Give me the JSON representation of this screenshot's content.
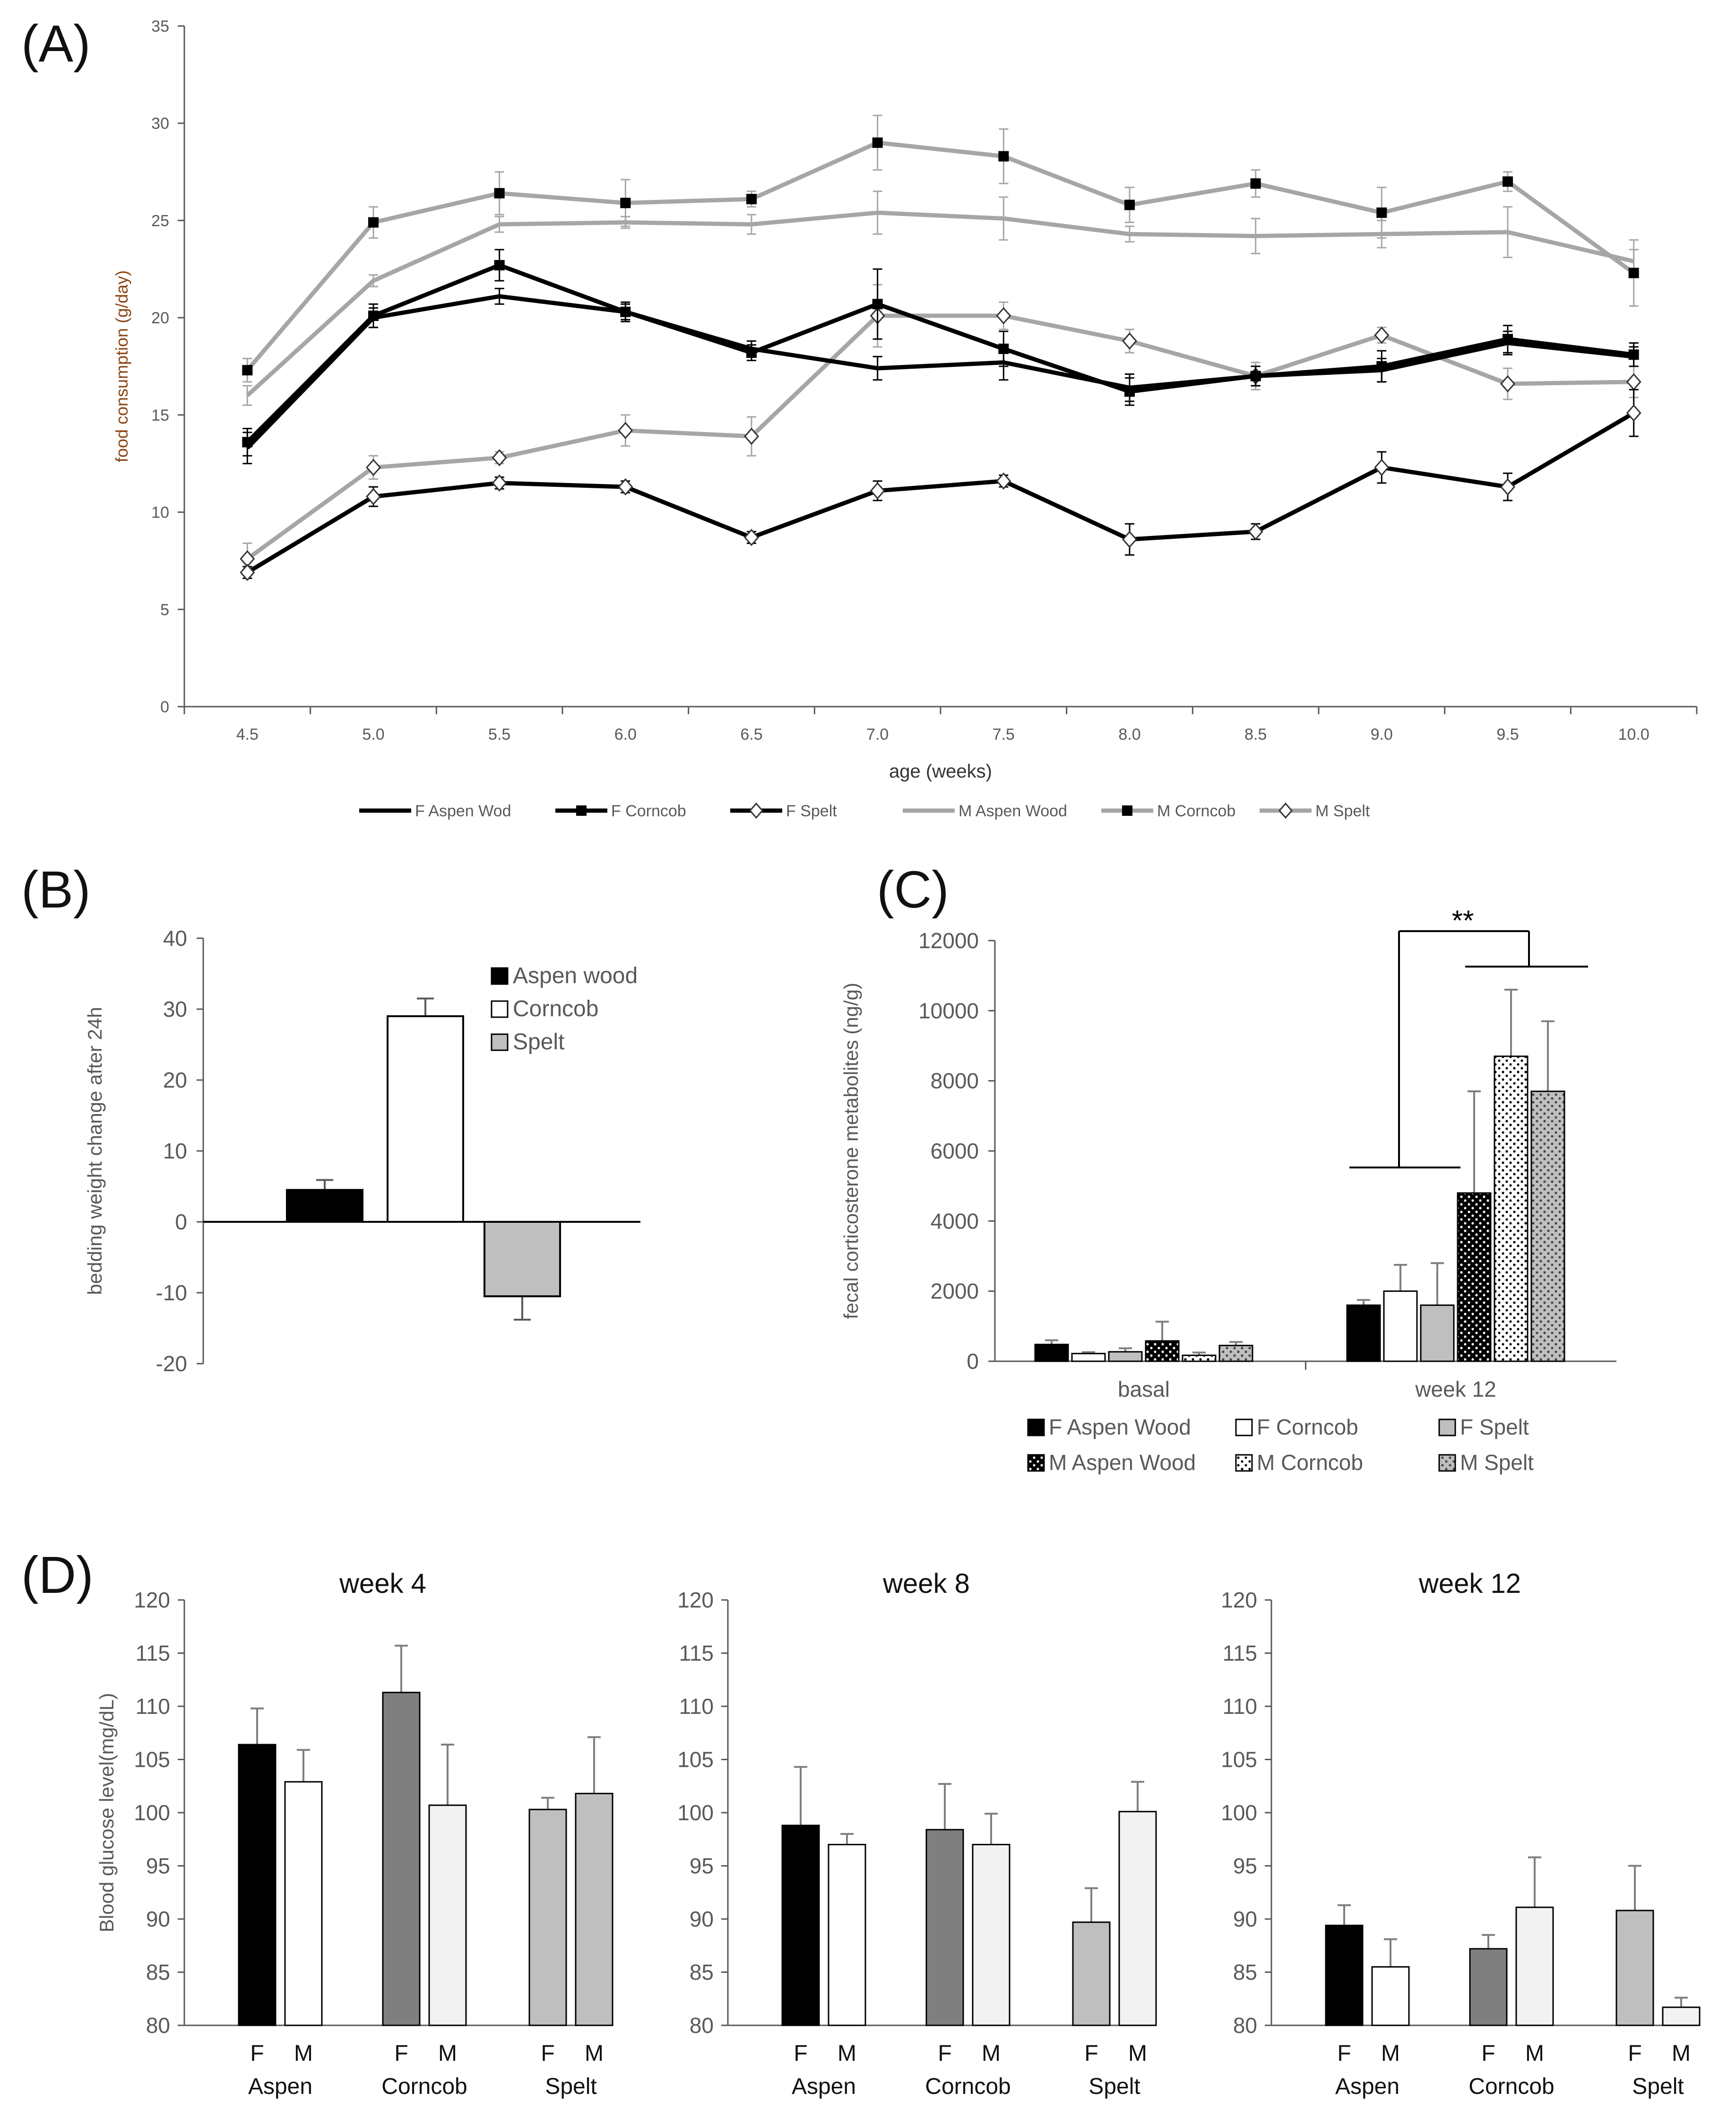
{
  "colors": {
    "black": "#000000",
    "grey": "#a6a6a6",
    "lightgrey": "#bfbfbf",
    "darkgrey": "#7f7f7f",
    "palegrey": "#f2f2f2",
    "axis": "#595959",
    "text": "#595959"
  },
  "chart_data": [
    {
      "panel": "(A)",
      "type": "line",
      "title": "",
      "xlabel": "age (weeks)",
      "ylabel": "food consumption (g/day)",
      "x": [
        "4.5",
        "5.0",
        "5.5",
        "6.0",
        "6.5",
        "7.0",
        "7.5",
        "8.0",
        "8.5",
        "9.0",
        "9.5",
        "10.0"
      ],
      "yticks": [
        "0",
        "5",
        "10",
        "15",
        "20",
        "25",
        "30",
        "35"
      ],
      "ylim": [
        0,
        35
      ],
      "series": [
        {
          "name": "F Aspen Wod",
          "color": "black",
          "marker": "none",
          "values": [
            13.3,
            20.0,
            21.1,
            20.3,
            18.4,
            17.4,
            17.7,
            16.4,
            17.0,
            17.3,
            18.7,
            18.0
          ],
          "errors": [
            0.8,
            0.5,
            0.4,
            0.4,
            0.4,
            0.6,
            0.9,
            0.7,
            0.5,
            0.6,
            0.6,
            0.5
          ]
        },
        {
          "name": "F Corncob",
          "color": "black",
          "marker": "square",
          "values": [
            13.6,
            20.1,
            22.7,
            20.3,
            18.2,
            20.7,
            18.4,
            16.2,
            17.0,
            17.5,
            18.9,
            18.1
          ],
          "errors": [
            0.7,
            0.6,
            0.8,
            0.5,
            0.4,
            1.8,
            0.9,
            0.7,
            0.5,
            0.8,
            0.7,
            0.6
          ]
        },
        {
          "name": "F Spelt",
          "color": "black",
          "marker": "diamond",
          "values": [
            6.9,
            10.8,
            11.5,
            11.3,
            8.7,
            11.1,
            11.6,
            8.6,
            9.0,
            12.3,
            11.3,
            15.1
          ],
          "errors": [
            0.3,
            0.5,
            0.3,
            0.3,
            0.3,
            0.5,
            0.3,
            0.8,
            0.4,
            0.8,
            0.7,
            1.2
          ]
        },
        {
          "name": "M Aspen Wood",
          "color": "grey",
          "marker": "none",
          "values": [
            16.0,
            21.9,
            24.8,
            24.9,
            24.8,
            25.4,
            25.1,
            24.3,
            24.2,
            24.3,
            24.4,
            22.9
          ],
          "errors": [
            0.5,
            0.3,
            0.4,
            0.3,
            0.5,
            1.1,
            1.1,
            0.4,
            0.9,
            0.7,
            1.3,
            0.6
          ]
        },
        {
          "name": "M Corncob",
          "color": "grey",
          "marker": "square",
          "values": [
            17.3,
            24.9,
            26.4,
            25.9,
            26.1,
            29.0,
            28.3,
            25.8,
            26.9,
            25.4,
            27.0,
            22.3
          ],
          "errors": [
            0.6,
            0.8,
            1.1,
            1.2,
            0.4,
            1.4,
            1.4,
            0.9,
            0.7,
            1.3,
            0.5,
            1.7
          ]
        },
        {
          "name": "M Spelt",
          "color": "grey",
          "marker": "diamond",
          "values": [
            7.6,
            12.3,
            12.8,
            14.2,
            13.9,
            20.1,
            20.1,
            18.8,
            17.0,
            19.1,
            16.6,
            16.7
          ],
          "errors": [
            0.8,
            0.6,
            0.3,
            0.8,
            1.0,
            1.6,
            0.7,
            0.6,
            0.7,
            0.4,
            0.8,
            0.8
          ]
        }
      ]
    },
    {
      "panel": "(B)",
      "type": "bar",
      "title": "",
      "ylabel": "bedding weight change after 24h",
      "yticks": [
        "-20",
        "-10",
        "0",
        "10",
        "20",
        "30",
        "40"
      ],
      "ylim": [
        -20,
        40
      ],
      "categories": [
        "Aspen wood",
        "Corncob",
        "Spelt"
      ],
      "values": [
        4.5,
        29.0,
        -10.5
      ],
      "errors": [
        1.4,
        2.5,
        3.3
      ],
      "fills": [
        "black",
        "white",
        "lightgrey"
      ]
    },
    {
      "panel": "(C)",
      "type": "bar",
      "title": "",
      "ylabel": "fecal corticosterone metabolites (ng/g)",
      "yticks": [
        "0",
        "2000",
        "4000",
        "6000",
        "8000",
        "10000",
        "12000"
      ],
      "ylim": [
        0,
        12000
      ],
      "categories": [
        "basal",
        "week 12"
      ],
      "series": [
        {
          "name": "F Aspen Wood",
          "fill": "black",
          "pattern": "none",
          "values": [
            480,
            1600
          ],
          "errors": [
            120,
            150
          ]
        },
        {
          "name": "F Corncob",
          "fill": "white",
          "pattern": "none",
          "values": [
            220,
            2000
          ],
          "errors": [
            40,
            750
          ]
        },
        {
          "name": "F Spelt",
          "fill": "lightgrey",
          "pattern": "none",
          "values": [
            270,
            1600
          ],
          "errors": [
            100,
            1200
          ]
        },
        {
          "name": "M Aspen Wood",
          "fill": "black",
          "pattern": "dots",
          "values": [
            580,
            4800
          ],
          "errors": [
            550,
            2900
          ]
        },
        {
          "name": "M Corncob",
          "fill": "white",
          "pattern": "dots",
          "values": [
            170,
            8700
          ],
          "errors": [
            80,
            1900
          ]
        },
        {
          "name": "M Spelt",
          "fill": "lightgrey",
          "pattern": "dots",
          "values": [
            450,
            7700
          ],
          "errors": [
            100,
            2000
          ]
        }
      ],
      "annotation": "**"
    },
    {
      "panel": "(D)",
      "type": "bar",
      "title": "week 4",
      "ylabel": "Blood glucose level(mg/dL)",
      "yticks": [
        "80",
        "85",
        "90",
        "95",
        "100",
        "105",
        "110",
        "115",
        "120"
      ],
      "ylim": [
        80,
        120
      ],
      "groups": [
        "Aspen",
        "Corncob",
        "Spelt"
      ],
      "bar_labels": [
        "F",
        "M"
      ],
      "values": [
        [
          106.4,
          102.9
        ],
        [
          111.3,
          100.7
        ],
        [
          100.3,
          101.8
        ]
      ],
      "errors": [
        [
          3.4,
          3.0
        ],
        [
          4.4,
          5.7
        ],
        [
          1.1,
          5.3
        ]
      ],
      "fills": [
        [
          "black",
          "white"
        ],
        [
          "darkgrey",
          "palegrey"
        ],
        [
          "lightgrey",
          "lightgrey"
        ]
      ]
    },
    {
      "panel": "",
      "type": "bar",
      "title": "week 8",
      "ylabel": "",
      "yticks": [
        "80",
        "85",
        "90",
        "95",
        "100",
        "105",
        "110",
        "115",
        "120"
      ],
      "ylim": [
        80,
        120
      ],
      "groups": [
        "Aspen",
        "Corncob",
        "Spelt"
      ],
      "bar_labels": [
        "F",
        "M"
      ],
      "values": [
        [
          98.8,
          97.0
        ],
        [
          98.4,
          97.0
        ],
        [
          89.7,
          100.1
        ]
      ],
      "errors": [
        [
          5.5,
          1.0
        ],
        [
          4.3,
          2.9
        ],
        [
          3.2,
          2.8
        ]
      ],
      "fills": [
        [
          "black",
          "white"
        ],
        [
          "darkgrey",
          "palegrey"
        ],
        [
          "lightgrey",
          "palegrey"
        ]
      ]
    },
    {
      "panel": "",
      "type": "bar",
      "title": "week 12",
      "ylabel": "",
      "yticks": [
        "80",
        "85",
        "90",
        "95",
        "100",
        "105",
        "110",
        "115",
        "120"
      ],
      "ylim": [
        80,
        120
      ],
      "groups": [
        "Aspen",
        "Corncob",
        "Spelt"
      ],
      "bar_labels": [
        "F",
        "M"
      ],
      "values": [
        [
          89.4,
          85.5
        ],
        [
          87.2,
          91.1
        ],
        [
          90.8,
          81.7
        ]
      ],
      "errors": [
        [
          1.9,
          2.6
        ],
        [
          1.3,
          4.7
        ],
        [
          4.2,
          0.9
        ]
      ],
      "fills": [
        [
          "black",
          "white"
        ],
        [
          "darkgrey",
          "palegrey"
        ],
        [
          "lightgrey",
          "palegrey"
        ]
      ]
    }
  ]
}
